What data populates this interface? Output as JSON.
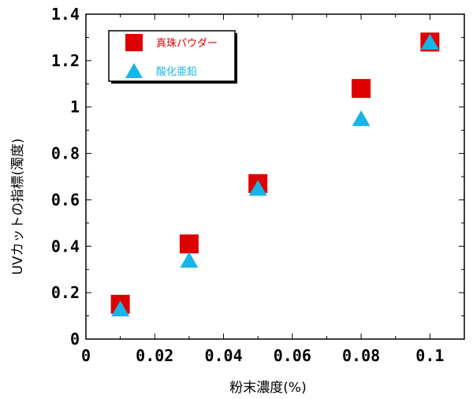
{
  "chart_data": {
    "type": "scatter",
    "xlabel": "粉末濃度(%)",
    "ylabel": "UVカットの指標(濁度)",
    "xlim": [
      0,
      0.11
    ],
    "ylim": [
      0,
      1.4
    ],
    "x_ticks": [
      "0",
      "0.02",
      "0.04",
      "0.06",
      "0.08",
      "0.1"
    ],
    "y_ticks": [
      "0",
      "0.2",
      "0.4",
      "0.6",
      "0.8",
      "1",
      "1.2",
      "1.4"
    ],
    "grid": false,
    "legend_position": "top-left",
    "series": [
      {
        "name": "真珠パウダー",
        "marker": "square",
        "color": "#dd0000",
        "x": [
          0.01,
          0.03,
          0.05,
          0.08,
          0.1
        ],
        "y": [
          0.15,
          0.41,
          0.67,
          1.08,
          1.28
        ]
      },
      {
        "name": "酸化亜鉛",
        "marker": "triangle",
        "color": "#18b4e8",
        "x": [
          0.01,
          0.03,
          0.05,
          0.08,
          0.1
        ],
        "y": [
          0.13,
          0.34,
          0.65,
          0.95,
          1.28
        ]
      }
    ]
  }
}
